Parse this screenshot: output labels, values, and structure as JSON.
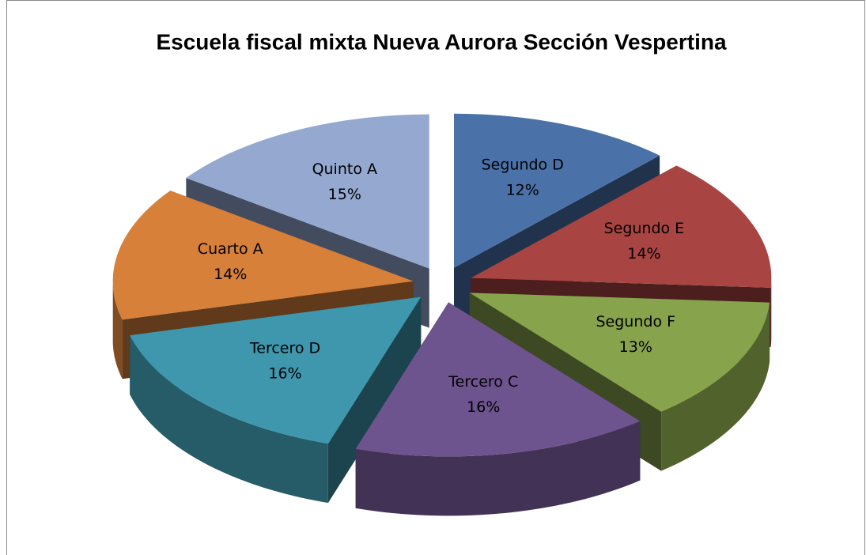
{
  "chart_data": {
    "type": "pie",
    "title": "Escuela fiscal mixta Nueva Aurora Sección Vespertina",
    "categories": [
      "Segundo D",
      "Segundo E",
      "Segundo F",
      "Tercero C",
      "Tercero D",
      "Cuarto A",
      "Quinto A"
    ],
    "values": [
      12,
      14,
      13,
      16,
      16,
      14,
      15
    ],
    "value_labels": [
      "12%",
      "14%",
      "13%",
      "16%",
      "16%",
      "14%",
      "15%"
    ],
    "colors": [
      "#4a72a8",
      "#a84442",
      "#87a34b",
      "#6e548f",
      "#3f97ae",
      "#d6803a",
      "#95a8d0"
    ]
  }
}
